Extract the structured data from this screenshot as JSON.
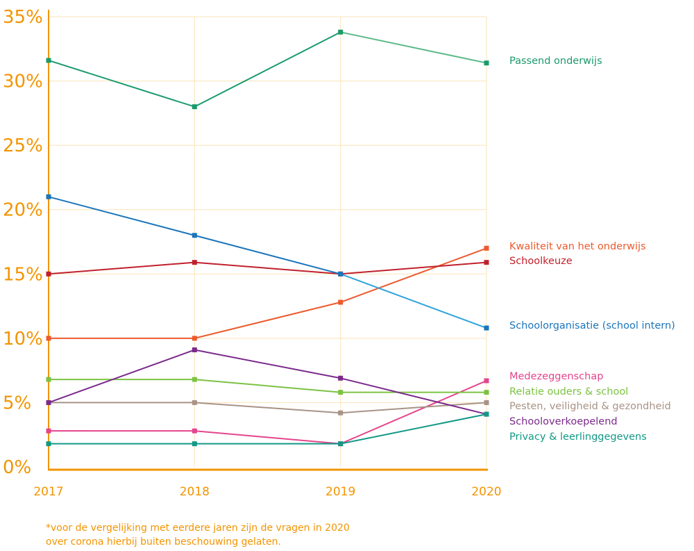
{
  "chart_data": {
    "type": "line",
    "x": [
      "2017",
      "2018",
      "2019",
      "2020"
    ],
    "y_ticks": [
      "0%",
      "5%",
      "10%",
      "15%",
      "20%",
      "25%",
      "30%",
      "35%"
    ],
    "ylim": [
      0,
      35
    ],
    "grid": true,
    "legend_placement": "right (labels at line ends)",
    "axis_color": "#f29400",
    "grid_color": "#fbe3b8",
    "series": [
      {
        "name": "Passend onderwijs",
        "values": [
          31.6,
          28.0,
          33.8,
          31.4
        ],
        "color": "#1a9a6c",
        "end_color": "#5fba8a"
      },
      {
        "name": "Kwaliteit van het onderwijs",
        "values": [
          10.0,
          10.0,
          12.8,
          17.0
        ],
        "color": "#ec5a2d"
      },
      {
        "name": "Schoolkeuze",
        "values": [
          15.0,
          15.9,
          15.0,
          15.9
        ],
        "color": "#c0202c"
      },
      {
        "name": "Schoolorganisatie (school intern)",
        "values": [
          21.0,
          18.0,
          15.0,
          10.8
        ],
        "color": "#1b75bb",
        "end_color": "#2ea3dc"
      },
      {
        "name": "Medezeggenschap",
        "values": [
          2.8,
          2.8,
          1.8,
          6.7
        ],
        "color": "#e4458d"
      },
      {
        "name": "Relatie ouders & school",
        "values": [
          6.8,
          6.8,
          5.8,
          5.8
        ],
        "color": "#7cc243"
      },
      {
        "name": "Pesten, veiligheid & gezondheid",
        "values": [
          5.0,
          5.0,
          4.2,
          5.0
        ],
        "color": "#a89386"
      },
      {
        "name": "Schooloverkoepelend",
        "values": [
          5.0,
          9.1,
          6.9,
          4.1
        ],
        "color": "#7b2a8c"
      },
      {
        "name": "Privacy & leerlinggegevens",
        "values": [
          1.8,
          1.8,
          1.8,
          4.1
        ],
        "color": "#129985"
      }
    ]
  },
  "footnote": {
    "line1": "*voor de vergelijking met eerdere jaren zijn de vragen in 2020",
    "line2": "over corona hierbij buiten beschouwing gelaten."
  }
}
